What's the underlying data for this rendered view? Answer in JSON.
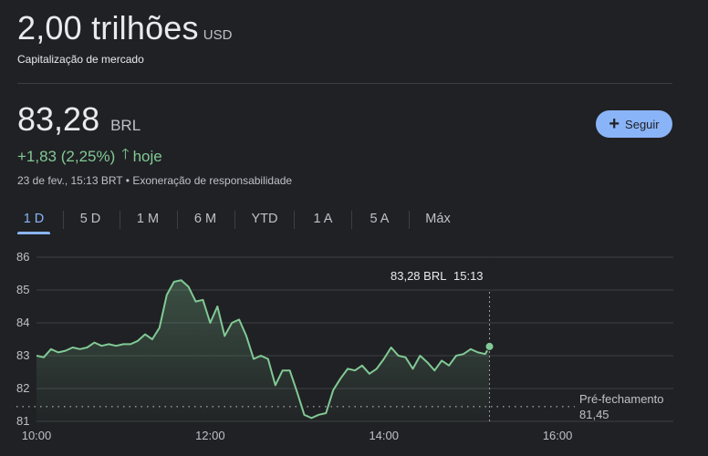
{
  "market_cap": {
    "value": "2,00 trilhões",
    "unit": "USD",
    "label": "Capitalização de mercado"
  },
  "quote": {
    "price": "83,28",
    "currency": "BRL",
    "change": "+1,83 (2,25%)",
    "direction_icon": "arrow-up-icon",
    "period": "hoje",
    "timestamp": "23 de fev., 15:13 BRT",
    "separator": "•",
    "disclaimer": "Exoneração de responsabilidade"
  },
  "follow_button": {
    "icon": "plus-icon",
    "label": "Seguir",
    "color": "#8ab4f8"
  },
  "tabs": [
    {
      "label": "1 D",
      "active": true
    },
    {
      "label": "5 D",
      "active": false
    },
    {
      "label": "1 M",
      "active": false
    },
    {
      "label": "6 M",
      "active": false
    },
    {
      "label": "YTD",
      "active": false
    },
    {
      "label": "1 A",
      "active": false
    },
    {
      "label": "5 A",
      "active": false
    },
    {
      "label": "Máx",
      "active": false
    }
  ],
  "tooltip": {
    "price": "83,28 BRL",
    "time": "15:13"
  },
  "previous_close": {
    "label": "Pré-fechamento",
    "value": "81,45"
  },
  "colors": {
    "up": "#81c995",
    "accent": "#8ab4f8",
    "background": "#202124"
  },
  "chart_data": {
    "type": "line",
    "x_unit": "time (hh:mm)",
    "y_unit": "BRL",
    "xlim": [
      "10:00",
      "17:20"
    ],
    "ylim": [
      81,
      86
    ],
    "y_ticks": [
      "86",
      "85",
      "84",
      "83",
      "82",
      "81"
    ],
    "x_ticks": [
      "10:00",
      "12:00",
      "14:00",
      "16:00"
    ],
    "grid": true,
    "reference_line": 81.45,
    "last_point": {
      "time": "15:13",
      "value": 83.28
    },
    "points": [
      [
        "10:00",
        83.0
      ],
      [
        "10:05",
        82.95
      ],
      [
        "10:10",
        83.2
      ],
      [
        "10:15",
        83.1
      ],
      [
        "10:20",
        83.15
      ],
      [
        "10:25",
        83.25
      ],
      [
        "10:30",
        83.2
      ],
      [
        "10:35",
        83.25
      ],
      [
        "10:40",
        83.4
      ],
      [
        "10:45",
        83.3
      ],
      [
        "10:50",
        83.35
      ],
      [
        "10:55",
        83.3
      ],
      [
        "11:00",
        83.35
      ],
      [
        "11:05",
        83.35
      ],
      [
        "11:10",
        83.45
      ],
      [
        "11:15",
        83.65
      ],
      [
        "11:20",
        83.5
      ],
      [
        "11:25",
        83.85
      ],
      [
        "11:30",
        84.85
      ],
      [
        "11:35",
        85.25
      ],
      [
        "11:40",
        85.3
      ],
      [
        "11:45",
        85.1
      ],
      [
        "11:50",
        84.65
      ],
      [
        "11:55",
        84.7
      ],
      [
        "12:00",
        84.0
      ],
      [
        "12:05",
        84.5
      ],
      [
        "12:10",
        83.6
      ],
      [
        "12:15",
        84.0
      ],
      [
        "12:20",
        84.1
      ],
      [
        "12:25",
        83.6
      ],
      [
        "12:30",
        82.9
      ],
      [
        "12:35",
        83.0
      ],
      [
        "12:40",
        82.9
      ],
      [
        "12:45",
        82.1
      ],
      [
        "12:50",
        82.55
      ],
      [
        "12:55",
        82.55
      ],
      [
        "13:00",
        81.9
      ],
      [
        "13:05",
        81.2
      ],
      [
        "13:10",
        81.1
      ],
      [
        "13:15",
        81.2
      ],
      [
        "13:20",
        81.25
      ],
      [
        "13:25",
        81.95
      ],
      [
        "13:30",
        82.3
      ],
      [
        "13:35",
        82.6
      ],
      [
        "13:40",
        82.55
      ],
      [
        "13:45",
        82.7
      ],
      [
        "13:50",
        82.45
      ],
      [
        "13:55",
        82.6
      ],
      [
        "14:00",
        82.9
      ],
      [
        "14:05",
        83.25
      ],
      [
        "14:10",
        83.0
      ],
      [
        "14:15",
        82.95
      ],
      [
        "14:20",
        82.6
      ],
      [
        "14:25",
        83.0
      ],
      [
        "14:30",
        82.8
      ],
      [
        "14:35",
        82.55
      ],
      [
        "14:40",
        82.85
      ],
      [
        "14:45",
        82.7
      ],
      [
        "14:50",
        83.0
      ],
      [
        "14:55",
        83.05
      ],
      [
        "15:00",
        83.2
      ],
      [
        "15:05",
        83.1
      ],
      [
        "15:10",
        83.05
      ],
      [
        "15:13",
        83.28
      ]
    ]
  }
}
